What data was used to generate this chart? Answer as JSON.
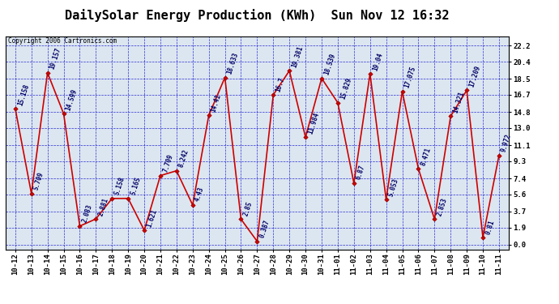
{
  "title": "DailySolar Energy Production (KWh)  Sun Nov 12 16:32",
  "copyright": "Copyright 2006 Cartronics.com",
  "dates": [
    "10-12",
    "10-13",
    "10-14",
    "10-15",
    "10-16",
    "10-17",
    "10-18",
    "10-19",
    "10-20",
    "10-21",
    "10-22",
    "10-23",
    "10-24",
    "10-25",
    "10-26",
    "10-27",
    "10-28",
    "10-29",
    "10-30",
    "10-31",
    "11-01",
    "11-02",
    "11-03",
    "11-04",
    "11-05",
    "11-06",
    "11-07",
    "11-08",
    "11-09",
    "11-10",
    "11-11"
  ],
  "values": [
    15.158,
    5.709,
    19.157,
    14.599,
    2.083,
    2.881,
    5.158,
    5.165,
    1.621,
    7.709,
    8.242,
    4.43,
    14.41,
    18.633,
    2.85,
    0.387,
    16.7,
    19.381,
    11.984,
    18.539,
    15.829,
    6.87,
    19.04,
    5.053,
    17.075,
    8.471,
    2.853,
    14.321,
    17.209,
    0.81,
    9.972
  ],
  "line_color": "#cc0000",
  "marker_facecolor": "#cc0000",
  "marker_edgecolor": "#880000",
  "label_color": "#000066",
  "bg_color": "#ffffff",
  "plot_bg_color": "#dce6f0",
  "grid_color": "#0000cc",
  "border_color": "#000000",
  "yticks": [
    0.0,
    1.9,
    3.7,
    5.6,
    7.4,
    9.3,
    11.1,
    13.0,
    14.8,
    16.7,
    18.5,
    20.4,
    22.2
  ],
  "ylim": [
    -0.5,
    23.2
  ],
  "title_fontsize": 11,
  "tick_fontsize": 6.5,
  "annot_fontsize": 5.5,
  "copyright_fontsize": 5.5
}
